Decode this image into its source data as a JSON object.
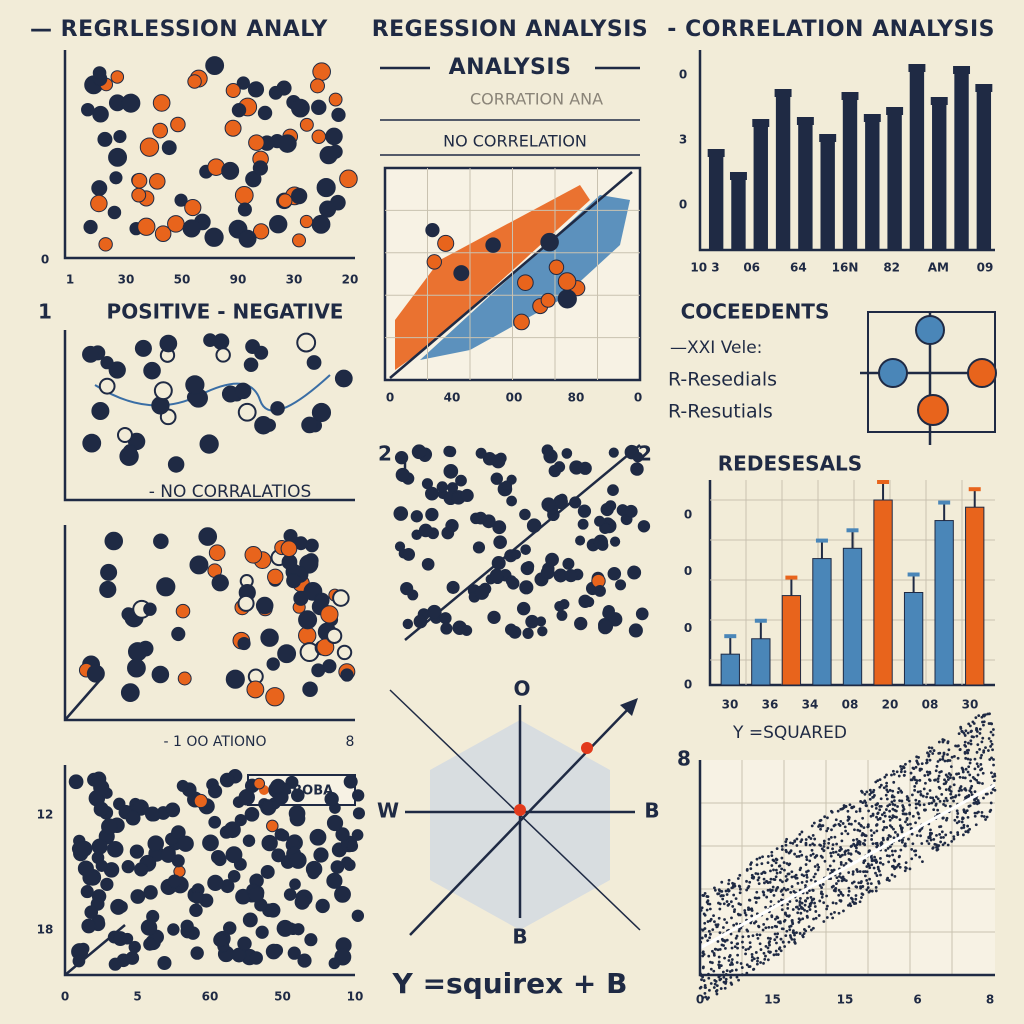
{
  "header": {
    "left": "— REGRLESSION ANALY",
    "center": "REGESSION ANALYSIS",
    "right": "- CORRELATION ANALYSIS",
    "sub": "ANALYSIS"
  },
  "panel_a": {
    "xticks": [
      "1",
      "30",
      "50",
      "90",
      "30",
      "20"
    ],
    "yticks": [
      "0"
    ]
  },
  "panel_b": {
    "ghost_title": "CORRATION ANA",
    "title": "NO CORRELATION",
    "xticks": [
      "0",
      "40",
      "00",
      "80",
      "0"
    ]
  },
  "panel_c": {
    "xticks": [
      "10 3",
      "06",
      "64",
      "16N",
      "82",
      "AM",
      "09"
    ],
    "yticks": [
      "0",
      "3",
      "0"
    ],
    "values": [
      9.5,
      7.2,
      12.5,
      15.5,
      12.7,
      11.0,
      15.2,
      13.0,
      13.7,
      18.0,
      14.7,
      17.8,
      16.0
    ],
    "color": "#1f2a44"
  },
  "panel_d": {
    "number": "1",
    "title": "POSITIVE - NEGATIVE",
    "caption": "- NO CORRALATIOS"
  },
  "panel_e": {
    "number_left": "2",
    "number_right": "2"
  },
  "panel_f": {
    "title": "COCEEDENTS",
    "line1": "—XXI Vele:",
    "line2": "R-Resedials",
    "line3": "R-Resutials"
  },
  "panel_g": {
    "title": "REDESESALS",
    "xticks": [
      "30",
      "36",
      "34",
      "08",
      "20",
      "08",
      "30"
    ],
    "yticks": [
      "0",
      "0",
      "0",
      "0"
    ],
    "values": [
      3.0,
      4.5,
      8.7,
      12.3,
      13.3,
      18.0,
      9.0,
      16.0,
      17.3
    ],
    "colors": [
      "#4a86b8",
      "#4a86b8",
      "#e8641c",
      "#4a86b8",
      "#4a86b8",
      "#e8641c",
      "#4a86b8",
      "#4a86b8",
      "#e8641c"
    ]
  },
  "panel_h": {
    "caption": "- 1 OO ATIONO",
    "corner": "8"
  },
  "diagram": {
    "top": "O",
    "left": "W",
    "right": "B",
    "bottom": "B",
    "formula": "Y =squirex + B"
  },
  "panel_i": {
    "title": "Y =SQUARED",
    "corner": "8",
    "xticks": [
      "0",
      "15",
      "15",
      "6",
      "8"
    ]
  },
  "panel_j": {
    "legend": "=SBOBA",
    "xticks": [
      "0",
      "5",
      "60",
      "50",
      "10"
    ],
    "yticks": [
      "12",
      "18"
    ]
  }
}
